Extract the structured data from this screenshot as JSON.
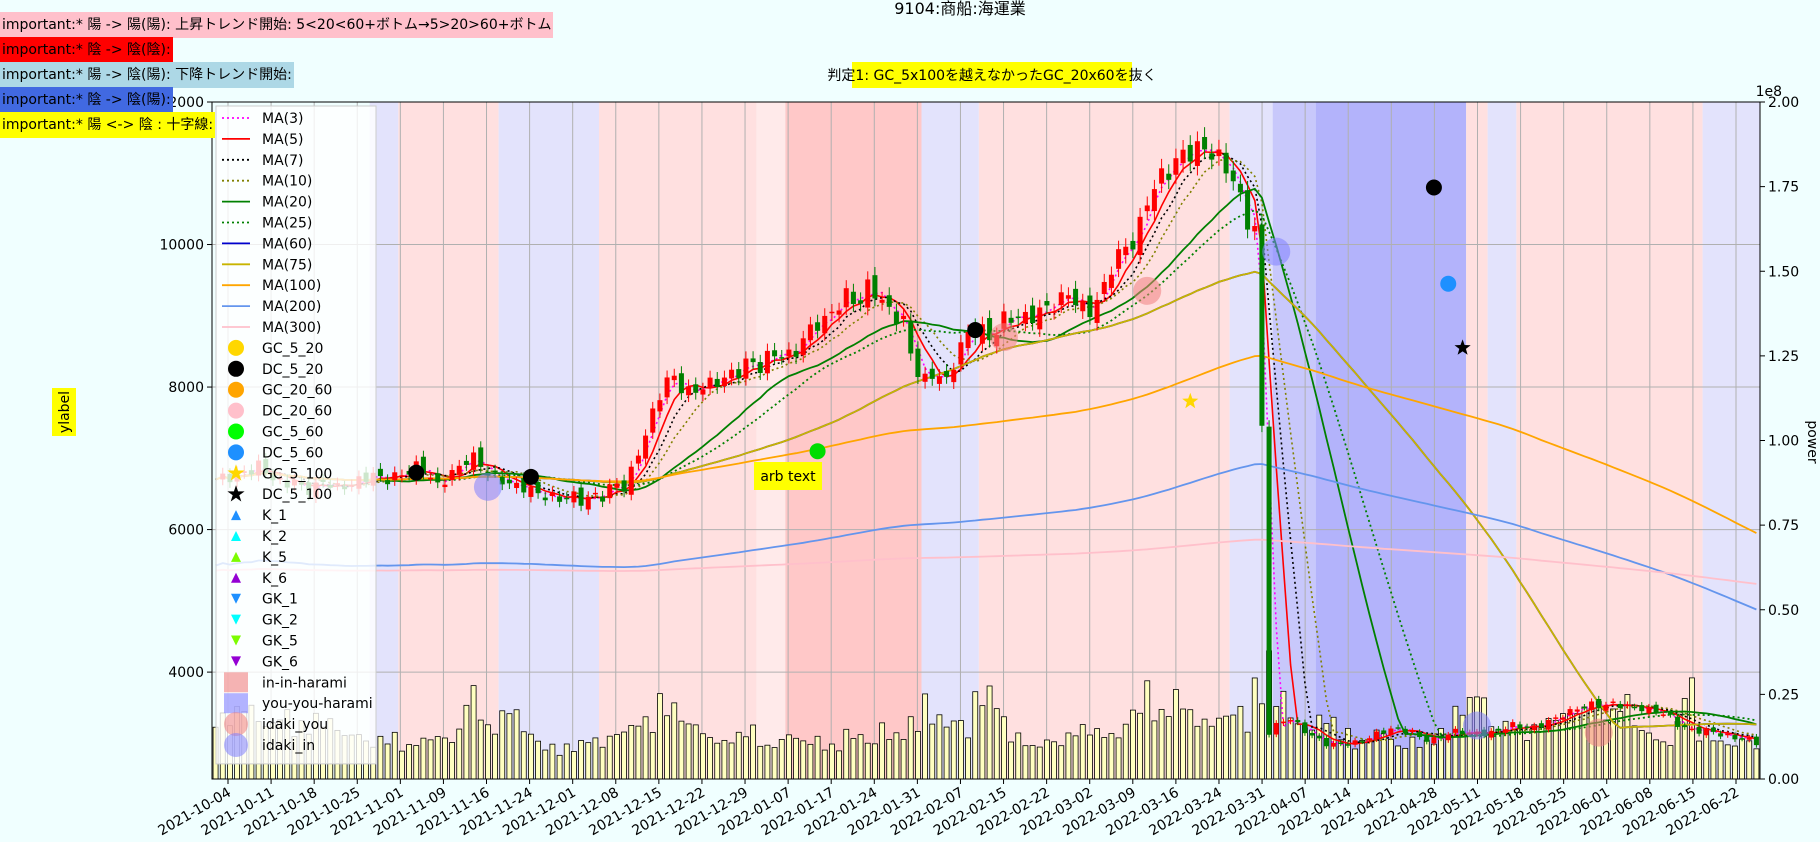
{
  "chart_data": {
    "type": "candlestick",
    "title": "9104:商船:海運業",
    "annotation_box": "判定1: GC_5x100を越えなかったGC_20x60を抜く",
    "arb_text": "arb text",
    "ylabel": "ylabel",
    "y2label": "power",
    "y2_offset": "1e8",
    "ylim": [
      2500,
      12000
    ],
    "y2lim": [
      0,
      2.0
    ],
    "yticks": [
      4000,
      6000,
      8000,
      10000,
      12000
    ],
    "y2ticks": [
      0.0,
      0.25,
      0.5,
      0.75,
      1.0,
      1.25,
      1.5,
      1.75,
      2.0
    ],
    "date_labels": [
      "2021-10-04",
      "2021-10-11",
      "2021-10-18",
      "2021-10-25",
      "2021-11-01",
      "2021-11-09",
      "2021-11-16",
      "2021-11-24",
      "2021-12-01",
      "2021-12-08",
      "2021-12-15",
      "2021-12-22",
      "2021-12-29",
      "2022-01-07",
      "2022-01-17",
      "2022-01-24",
      "2022-01-31",
      "2022-02-07",
      "2022-02-15",
      "2022-02-22",
      "2022-03-02",
      "2022-03-09",
      "2022-03-16",
      "2022-03-24",
      "2022-03-31",
      "2022-04-07",
      "2022-04-14",
      "2022-04-21",
      "2022-04-28",
      "2022-05-11",
      "2022-05-18",
      "2022-05-25",
      "2022-06-01",
      "2022-06-08",
      "2022-06-15",
      "2022-06-22"
    ],
    "notes": [
      {
        "text": "important:* 陽 -> 陽(陽): 上昇トレンド開始: 5<20<60+ボトム→5>20>60+ボトム",
        "color": "#ffc0cb"
      },
      {
        "text": "important:* 陰 -> 陰(陰):",
        "color": "#ff0000"
      },
      {
        "text": "important:* 陽 -> 陰(陽): 下降トレンド開始:",
        "color": "#add8e6"
      },
      {
        "text": "important:* 陰 -> 陰(陽):",
        "color": "#4169e1"
      },
      {
        "text": "important:* 陽 <-> 陰 : 十字線:",
        "color": "#ffff00"
      }
    ],
    "legend": [
      {
        "label": "MA(3)",
        "kind": "line",
        "color": "#ff00ff",
        "dash": "dot"
      },
      {
        "label": "MA(5)",
        "kind": "line",
        "color": "#ff0000",
        "dash": "solid"
      },
      {
        "label": "MA(7)",
        "kind": "line",
        "color": "#000000",
        "dash": "dot"
      },
      {
        "label": "MA(10)",
        "kind": "line",
        "color": "#808000",
        "dash": "dot"
      },
      {
        "label": "MA(20)",
        "kind": "line",
        "color": "#008000",
        "dash": "solid"
      },
      {
        "label": "MA(25)",
        "kind": "line",
        "color": "#008000",
        "dash": "dot"
      },
      {
        "label": "MA(60)",
        "kind": "line",
        "color": "#0000cd",
        "dash": "solid"
      },
      {
        "label": "MA(75)",
        "kind": "line",
        "color": "#c8b400",
        "dash": "solid"
      },
      {
        "label": "MA(100)",
        "kind": "line",
        "color": "#ffa500",
        "dash": "solid"
      },
      {
        "label": "MA(200)",
        "kind": "line",
        "color": "#6495ed",
        "dash": "solid"
      },
      {
        "label": "MA(300)",
        "kind": "line",
        "color": "#ffc0cb",
        "dash": "solid"
      },
      {
        "label": "GC_5_20",
        "kind": "circle",
        "color": "#ffd700"
      },
      {
        "label": "DC_5_20",
        "kind": "circle",
        "color": "#000000"
      },
      {
        "label": "GC_20_60",
        "kind": "circle",
        "color": "#ffa500"
      },
      {
        "label": "DC_20_60",
        "kind": "circle",
        "color": "#ffc0cb"
      },
      {
        "label": "GC_5_60",
        "kind": "circle",
        "color": "#00ff00"
      },
      {
        "label": "DC_5_60",
        "kind": "circle",
        "color": "#1e90ff"
      },
      {
        "label": "GC_5_100",
        "kind": "star",
        "color": "#ffd700"
      },
      {
        "label": "DC_5_100",
        "kind": "star",
        "color": "#000000"
      },
      {
        "label": "K_1",
        "kind": "tri-up",
        "color": "#1e90ff"
      },
      {
        "label": "K_2",
        "kind": "tri-up",
        "color": "#00ffff"
      },
      {
        "label": "K_5",
        "kind": "tri-up",
        "color": "#7cfc00"
      },
      {
        "label": "K_6",
        "kind": "tri-up",
        "color": "#9400d3"
      },
      {
        "label": "GK_1",
        "kind": "tri-down",
        "color": "#1e90ff"
      },
      {
        "label": "GK_2",
        "kind": "tri-down",
        "color": "#00ffff"
      },
      {
        "label": "GK_5",
        "kind": "tri-down",
        "color": "#7cfc00"
      },
      {
        "label": "GK_6",
        "kind": "tri-down",
        "color": "#9400d3"
      },
      {
        "label": "in-in-harami",
        "kind": "square",
        "color": "#f08080"
      },
      {
        "label": "you-you-harami",
        "kind": "square",
        "color": "#8080ff"
      },
      {
        "label": "idaki_you",
        "kind": "bigcircle",
        "color": "#f08080"
      },
      {
        "label": "idaki_in",
        "kind": "bigcircle",
        "color": "#8080ff"
      }
    ],
    "close": [
      6700,
      6740,
      6760,
      6830,
      6900,
      6750,
      6620,
      6700,
      6540,
      6600,
      6690,
      6570,
      6630,
      6680,
      6790,
      6700,
      6730,
      6780,
      6880,
      6830,
      6590,
      6760,
      6870,
      7050,
      6890,
      6740,
      6690,
      6600,
      6600,
      6500,
      6470,
      6420,
      6490,
      6400,
      6470,
      6470,
      6660,
      6580,
      7030,
      7420,
      7880,
      8180,
      8010,
      7890,
      8030,
      8040,
      8150,
      8180,
      8380,
      8260,
      8460,
      8470,
      8410,
      8670,
      8880,
      8930,
      9120,
      9300,
      9150,
      9460,
      9220,
      9020,
      8960,
      8280,
      8090,
      8220,
      8050,
      8530,
      8760,
      8820,
      8650,
      8950,
      8990,
      8970,
      9020,
      9120,
      9180,
      9340,
      9100,
      9070,
      9330,
      9770,
      9950,
      10050,
      10600,
      10910,
      11030,
      11250,
      11300,
      11370,
      11270,
      11130,
      10850,
      10350,
      10150,
      3150,
      3300,
      3350,
      3200,
      3100,
      3000,
      2980,
      3000,
      3010,
      3080,
      3150,
      3200,
      3200,
      3150,
      3050,
      3050,
      3120,
      3180,
      3140,
      3150,
      3140,
      3200,
      3260,
      3220,
      3220,
      3290,
      3360,
      3430,
      3500,
      3550,
      3520,
      3560,
      3530,
      3500,
      3480,
      3450,
      3400,
      3250,
      3190,
      3170,
      3170,
      3110,
      3080,
      3070,
      3010
    ],
    "volume_power_1e8": [
      0.18,
      0.17,
      0.19,
      0.2,
      0.16,
      0.15,
      0.18,
      0.14,
      0.15,
      0.17,
      0.16,
      0.14,
      0.12,
      0.13,
      0.1,
      0.11,
      0.12,
      0.09,
      0.1,
      0.11,
      0.12,
      0.11,
      0.13,
      0.24,
      0.2,
      0.14,
      0.18,
      0.19,
      0.13,
      0.1,
      0.09,
      0.08,
      0.09,
      0.1,
      0.11,
      0.09,
      0.12,
      0.14,
      0.17,
      0.16,
      0.22,
      0.2,
      0.17,
      0.15,
      0.13,
      0.11,
      0.1,
      0.12,
      0.14,
      0.1,
      0.09,
      0.11,
      0.12,
      0.1,
      0.11,
      0.1,
      0.09,
      0.13,
      0.12,
      0.1,
      0.15,
      0.12,
      0.13,
      0.16,
      0.22,
      0.17,
      0.15,
      0.16,
      0.12,
      0.23,
      0.24,
      0.16,
      0.12,
      0.1,
      0.09,
      0.11,
      0.1,
      0.12,
      0.14,
      0.15,
      0.13,
      0.12,
      0.15,
      0.19,
      0.26,
      0.18,
      0.21,
      0.23,
      0.18,
      0.16,
      0.15,
      0.17,
      0.19,
      0.15,
      0.26,
      0.33,
      0.23,
      0.18,
      0.15,
      0.14,
      0.17,
      0.16,
      0.13,
      0.1,
      0.12,
      0.13,
      0.11,
      0.09,
      0.11,
      0.1,
      0.12,
      0.13,
      0.19,
      0.22,
      0.23,
      0.14,
      0.15,
      0.16,
      0.13,
      0.14,
      0.16,
      0.17,
      0.18,
      0.19,
      0.22,
      0.2,
      0.18,
      0.22,
      0.16,
      0.13,
      0.11,
      0.1,
      0.15,
      0.26,
      0.13,
      0.12,
      0.1,
      0.09,
      0.11,
      0.08
    ],
    "shading": [
      {
        "from": 22,
        "to": 26,
        "color": "#e3e3fc"
      },
      {
        "from": 26,
        "to": 40,
        "color": "#ffe0e0"
      },
      {
        "from": 40,
        "to": 54,
        "color": "#e3e3fc"
      },
      {
        "from": 54,
        "to": 76,
        "color": "#ffe0e0"
      },
      {
        "from": 76,
        "to": 80,
        "color": "#ffeaea"
      },
      {
        "from": 80,
        "to": 99,
        "color": "#ffc8c8"
      },
      {
        "from": 99,
        "to": 107,
        "color": "#e3e3fc"
      },
      {
        "from": 107,
        "to": 142,
        "color": "#ffe0e0"
      },
      {
        "from": 142,
        "to": 148,
        "color": "#e3e3fc"
      },
      {
        "from": 148,
        "to": 154,
        "color": "#c8c8fb"
      },
      {
        "from": 154,
        "to": 175,
        "color": "#b3b3fb"
      },
      {
        "from": 175,
        "to": 178,
        "color": "#ffe0e0"
      },
      {
        "from": 178,
        "to": 182,
        "color": "#e3e3fc"
      },
      {
        "from": 182,
        "to": 208,
        "color": "#ffe0e0"
      },
      {
        "from": 208,
        "to": 216,
        "color": "#e3e3fc"
      }
    ],
    "markers": [
      {
        "type": "DC_5_20",
        "i": 28,
        "y": 6800
      },
      {
        "type": "DC_5_20",
        "i": 44,
        "y": 6740
      },
      {
        "type": "DC_5_20",
        "i": 106,
        "y": 8800
      },
      {
        "type": "DC_5_20",
        "i": 170,
        "y": 10800
      },
      {
        "type": "DC_5_20",
        "i": 242,
        "y": 3480
      },
      {
        "type": "GC_5_60",
        "i": 84,
        "y": 7100
      },
      {
        "type": "DC_5_60",
        "i": 172,
        "y": 9450
      },
      {
        "type": "GC_20_100_star",
        "i": 136,
        "y": 7800
      },
      {
        "type": "DC_5_100",
        "i": 174,
        "y": 8550
      },
      {
        "type": "idaki_in",
        "i": 38,
        "y": 6600
      },
      {
        "type": "idaki_you",
        "i": 110,
        "y": 8700
      },
      {
        "type": "idaki_you",
        "i": 130,
        "y": 9350
      },
      {
        "type": "idaki_in",
        "i": 148,
        "y": 9900
      },
      {
        "type": "idaki_in",
        "i": 176,
        "y": 3250
      },
      {
        "type": "idaki_you",
        "i": 193,
        "y": 3150
      },
      {
        "type": "idaki_in",
        "i": 229,
        "y": 3550
      }
    ]
  },
  "colors": {
    "background": "#f0ffff",
    "up": "#ff0000",
    "down": "#008000",
    "volume": "#ffffc0"
  }
}
